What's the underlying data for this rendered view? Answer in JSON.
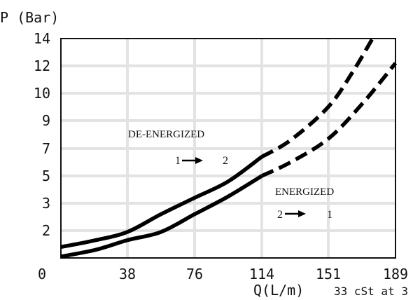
{
  "chart_data": {
    "type": "line",
    "title": "",
    "ylabel": "P (Bar)",
    "xlabel": "Q(L/m)",
    "note": "33 cSt at 3",
    "x_ticks": [
      "0",
      "38",
      "76",
      "114",
      "151",
      "189"
    ],
    "y_ticks": [
      "2",
      "3",
      "5",
      "7",
      "9",
      "10",
      "12",
      "14"
    ],
    "grid": true,
    "series": [
      {
        "name": "DE-ENERGIZED",
        "flow_label": {
          "from": "1",
          "to": "2"
        },
        "style": "solid",
        "points": [
          {
            "x": 0,
            "y": 0.8
          },
          {
            "x": 20,
            "y": 1.3
          },
          {
            "x": 38,
            "y": 1.9
          },
          {
            "x": 57,
            "y": 2.6
          },
          {
            "x": 76,
            "y": 3.4
          },
          {
            "x": 95,
            "y": 4.6
          },
          {
            "x": 114,
            "y": 6.4
          }
        ]
      },
      {
        "name": "DE-ENERGIZED",
        "style": "dashed",
        "points": [
          {
            "x": 114,
            "y": 6.4
          },
          {
            "x": 130,
            "y": 7.6
          },
          {
            "x": 151,
            "y": 9.5
          },
          {
            "x": 165,
            "y": 11.6
          },
          {
            "x": 176,
            "y": 14.0
          }
        ]
      },
      {
        "name": "ENERGIZED",
        "flow_label": {
          "from": "2",
          "to": "1"
        },
        "style": "solid",
        "points": [
          {
            "x": 0,
            "y": 0.1
          },
          {
            "x": 20,
            "y": 0.6
          },
          {
            "x": 38,
            "y": 1.3
          },
          {
            "x": 57,
            "y": 1.9
          },
          {
            "x": 76,
            "y": 2.6
          },
          {
            "x": 95,
            "y": 3.5
          },
          {
            "x": 114,
            "y": 5.0
          }
        ]
      },
      {
        "name": "ENERGIZED",
        "style": "dashed",
        "points": [
          {
            "x": 114,
            "y": 5.0
          },
          {
            "x": 130,
            "y": 6.0
          },
          {
            "x": 151,
            "y": 7.7
          },
          {
            "x": 170,
            "y": 9.6
          },
          {
            "x": 189,
            "y": 12.2
          }
        ]
      }
    ]
  }
}
